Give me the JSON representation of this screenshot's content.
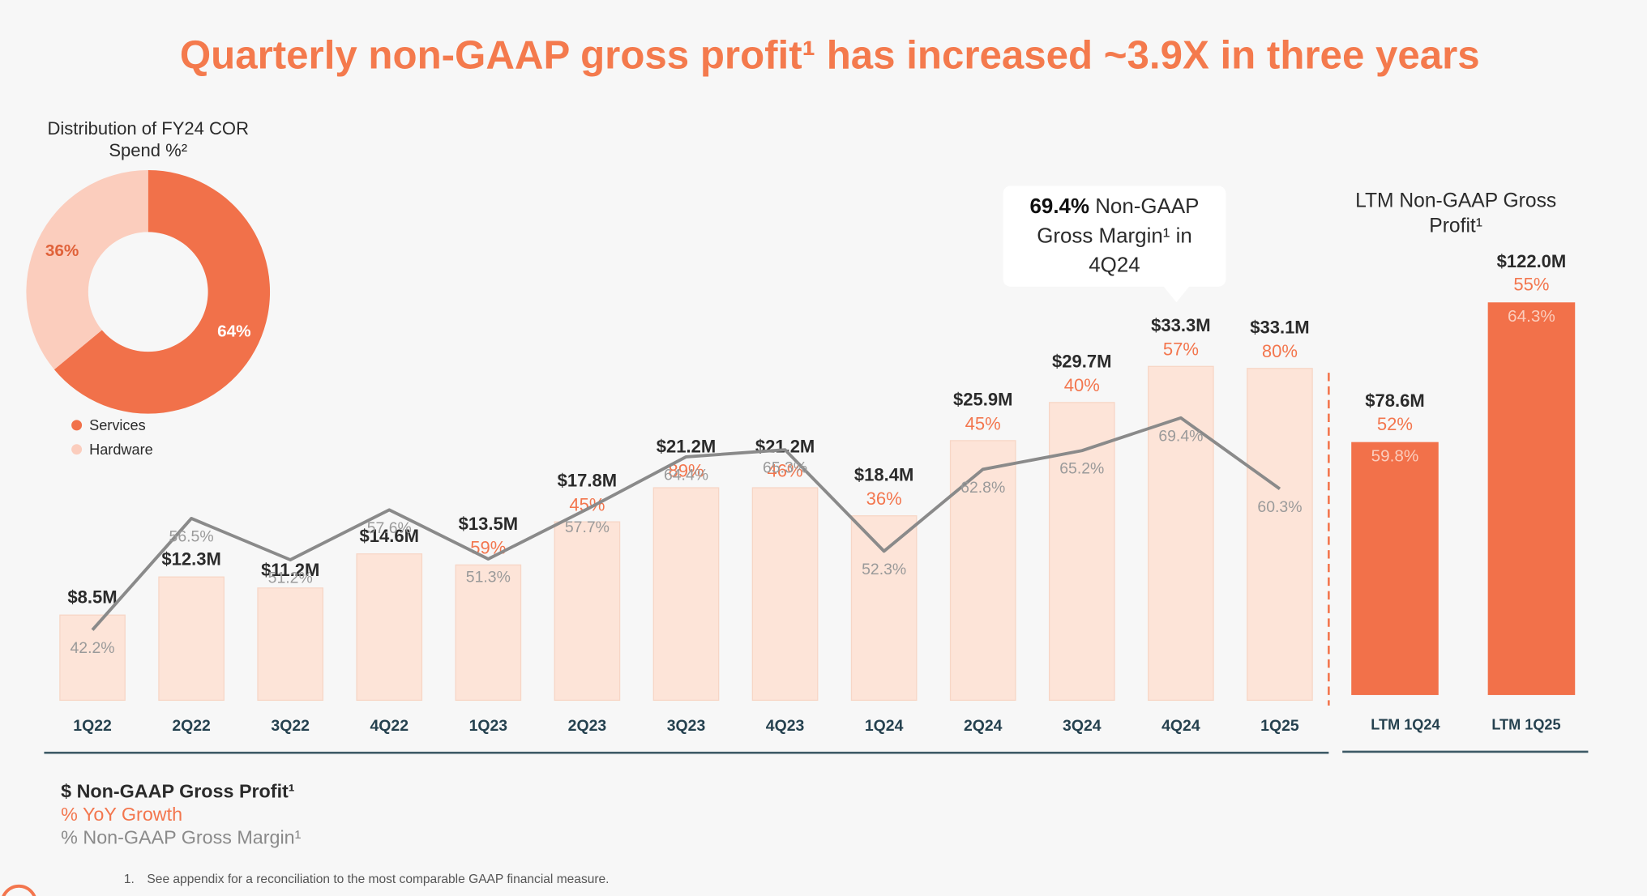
{
  "title": "Quarterly non-GAAP gross profit¹ has increased ~3.9X in three years",
  "chart_data": [
    {
      "type": "pie",
      "title": "Distribution of FY24 COR Spend %²",
      "categories": [
        "Services",
        "Hardware"
      ],
      "values": [
        64,
        36
      ],
      "value_labels": [
        "64%",
        "36%"
      ],
      "colors": [
        "#f1714a",
        "#fbcdbd"
      ]
    },
    {
      "type": "bar",
      "categories": [
        "1Q22",
        "2Q22",
        "3Q22",
        "4Q22",
        "1Q23",
        "2Q23",
        "3Q23",
        "4Q23",
        "1Q24",
        "2Q24",
        "3Q24",
        "4Q24",
        "1Q25"
      ],
      "series": [
        {
          "name": "$ Non-GAAP Gross Profit¹",
          "color": "#fde4d8",
          "values": [
            8.5,
            12.3,
            11.2,
            14.6,
            13.5,
            17.8,
            21.2,
            21.2,
            18.4,
            25.9,
            29.7,
            33.3,
            33.1
          ],
          "value_labels": [
            "$8.5M",
            "$12.3M",
            "$11.2M",
            "$14.6M",
            "$13.5M",
            "$17.8M",
            "$21.2M",
            "$21.2M",
            "$18.4M",
            "$25.9M",
            "$29.7M",
            "$33.3M",
            "$33.1M"
          ]
        },
        {
          "name": "% YoY Growth",
          "color": "#f3764e",
          "values": [
            null,
            null,
            null,
            null,
            59,
            45,
            89,
            46,
            36,
            45,
            40,
            57,
            80
          ],
          "value_labels": [
            null,
            null,
            null,
            null,
            "59%",
            "45%",
            "89%",
            "46%",
            "36%",
            "45%",
            "40%",
            "57%",
            "80%"
          ]
        },
        {
          "name": "% Non-GAAP Gross Margin¹",
          "type": "line",
          "color": "#8a8a8a",
          "values": [
            42.2,
            56.5,
            51.2,
            57.6,
            51.3,
            57.7,
            64.4,
            65.3,
            52.3,
            62.8,
            65.2,
            69.4,
            60.3
          ],
          "value_labels": [
            "42.2%",
            "56.5%",
            "51.2%",
            "57.6%",
            "51.3%",
            "57.7%",
            "64.4%",
            "65.3%",
            "52.3%",
            "62.8%",
            "65.2%",
            "69.4%",
            "60.3%"
          ]
        }
      ],
      "annotation": {
        "highlight": "69.4%",
        "text": "Non-GAAP Gross Margin¹ in 4Q24"
      }
    },
    {
      "type": "bar",
      "title": "LTM Non-GAAP Gross Profit¹",
      "categories": [
        "LTM 1Q24",
        "LTM 1Q25"
      ],
      "series": [
        {
          "color": "#f2714a",
          "values": [
            78.6,
            122.0
          ],
          "value_labels": [
            "$78.6M",
            "$122.0M"
          ]
        },
        {
          "color": "#f3764e",
          "values": [
            52,
            55
          ],
          "value_labels": [
            "52%",
            "55%"
          ]
        },
        {
          "color": "#fbcdbd",
          "values": [
            59.8,
            64.3
          ],
          "value_labels": [
            "59.8%",
            "64.3%"
          ]
        }
      ]
    }
  ],
  "footnotes": [
    {
      "number": "1.",
      "text": "See appendix for a reconciliation to the most comparable GAAP financial measure."
    }
  ]
}
